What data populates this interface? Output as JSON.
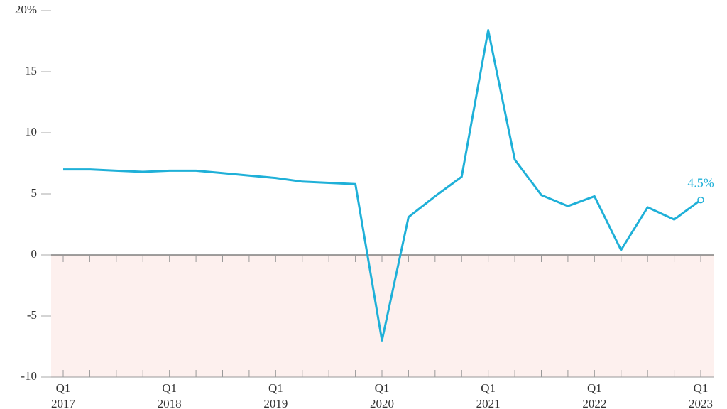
{
  "chart_data": {
    "type": "line",
    "categories": [
      [
        "Q1",
        "2017"
      ],
      null,
      null,
      null,
      [
        "Q1",
        "2018"
      ],
      null,
      null,
      null,
      [
        "Q1",
        "2019"
      ],
      null,
      null,
      null,
      [
        "Q1",
        "2020"
      ],
      null,
      null,
      null,
      [
        "Q1",
        "2021"
      ],
      null,
      null,
      null,
      [
        "Q1",
        "2022"
      ],
      null,
      null,
      null,
      [
        "Q1",
        "2023"
      ]
    ],
    "series": [
      {
        "color": "#1fb0d8",
        "values": [
          7.0,
          7.0,
          6.9,
          6.8,
          6.9,
          6.9,
          6.7,
          6.5,
          6.3,
          6.0,
          5.9,
          5.8,
          -7.0,
          3.1,
          4.8,
          6.4,
          18.4,
          7.8,
          4.9,
          4.0,
          4.8,
          0.4,
          3.9,
          2.9,
          4.5
        ],
        "value_labels": [
          null,
          null,
          null,
          null,
          null,
          null,
          null,
          null,
          null,
          null,
          null,
          null,
          null,
          null,
          null,
          null,
          null,
          null,
          null,
          null,
          null,
          null,
          null,
          null,
          "4.5%"
        ]
      }
    ],
    "ylim": [
      -10,
      20
    ],
    "yticks": [
      {
        "value": 20,
        "label": "20%"
      },
      15,
      10,
      5,
      0,
      -5,
      -10
    ],
    "negative_shading": "#fdf0ee"
  }
}
